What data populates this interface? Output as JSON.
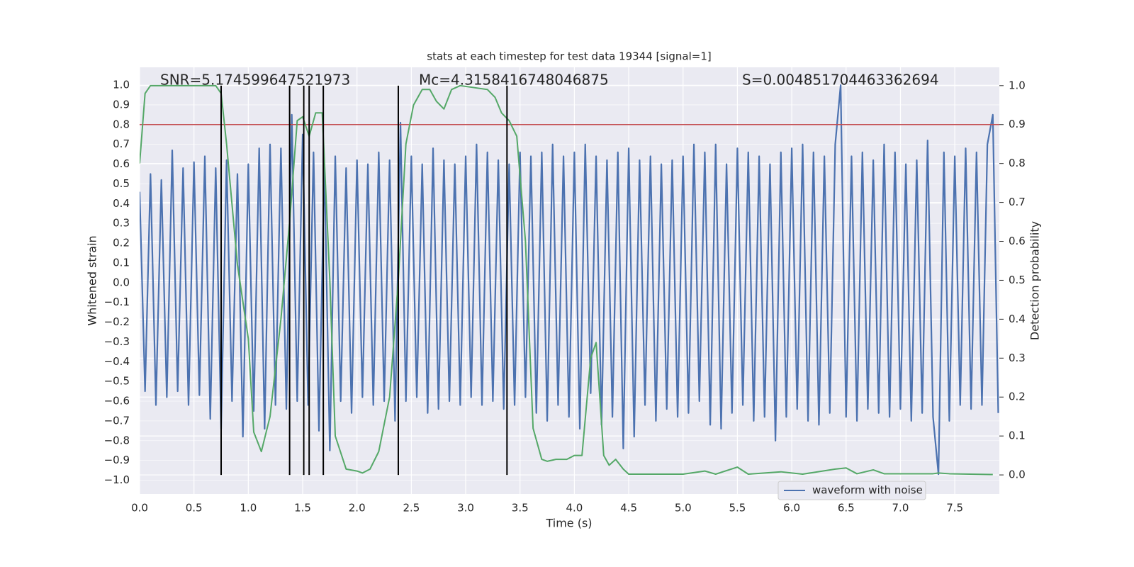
{
  "chart_data": {
    "type": "line",
    "title": "stats at each timestep for test data 19344 [signal=1]",
    "xlabel": "Time (s)",
    "ylabel": "Whitened strain",
    "y2label": "Detection probability",
    "annotations": [
      "SNR=5.174599647521973",
      "Mc=4.3158416748046875",
      "S=0.004851704463362694"
    ],
    "xlim": [
      0,
      7.91
    ],
    "ylim": [
      -1.07,
      1.09
    ],
    "y2lim": [
      -0.049,
      1.047
    ],
    "xticks": [
      {
        "value": 0,
        "label": "0.0"
      },
      0.5,
      {
        "value": 1,
        "label": "1.0"
      },
      1.5,
      {
        "value": 2,
        "label": "2.0"
      },
      2.5,
      {
        "value": 3,
        "label": "3.0"
      },
      3.5,
      {
        "value": 4,
        "label": "4.0"
      },
      4.5,
      {
        "value": 5,
        "label": "5.0"
      },
      5.5,
      {
        "value": 6,
        "label": "6.0"
      },
      6.5,
      {
        "value": 7,
        "label": "7.0"
      },
      7.5
    ],
    "yticks": [
      {
        "value": -1,
        "label": "−1.0"
      },
      {
        "value": -0.9,
        "label": "−0.9"
      },
      {
        "value": -0.8,
        "label": "−0.8"
      },
      {
        "value": -0.7,
        "label": "−0.7"
      },
      {
        "value": -0.6,
        "label": "−0.6"
      },
      {
        "value": -0.5,
        "label": "−0.5"
      },
      {
        "value": -0.4,
        "label": "−0.4"
      },
      {
        "value": -0.3,
        "label": "−0.3"
      },
      {
        "value": -0.2,
        "label": "−0.2"
      },
      {
        "value": -0.1,
        "label": "−0.1"
      },
      {
        "value": 0,
        "label": "0.0"
      },
      0.1,
      0.2,
      0.3,
      0.4,
      0.5,
      0.6,
      0.7,
      0.8,
      0.9,
      {
        "value": 1,
        "label": "1.0"
      }
    ],
    "y2ticks": [
      {
        "value": 0,
        "label": "0.0"
      },
      0.1,
      0.2,
      0.3,
      0.4,
      0.5,
      0.6,
      0.7,
      0.8,
      0.9,
      {
        "value": 1,
        "label": "1.0"
      }
    ],
    "grid": true,
    "background": "#eaeaf2",
    "legend": "lower right",
    "series": [
      {
        "name": "waveform with noise",
        "color": "#4c72b0",
        "x": [
          0,
          0.05,
          0.1,
          0.15,
          0.2,
          0.25,
          0.3,
          0.35,
          0.4,
          0.45,
          0.5,
          0.55,
          0.6,
          0.65,
          0.7,
          0.75,
          0.8,
          0.85,
          0.9,
          0.95,
          1,
          1.05,
          1.1,
          1.15,
          1.2,
          1.25,
          1.3,
          1.35,
          1.4,
          1.45,
          1.5,
          1.55,
          1.6,
          1.65,
          1.7,
          1.75,
          1.8,
          1.85,
          1.9,
          1.95,
          2,
          2.05,
          2.1,
          2.15,
          2.2,
          2.25,
          2.3,
          2.35,
          2.4,
          2.45,
          2.5,
          2.55,
          2.6,
          2.65,
          2.7,
          2.75,
          2.8,
          2.85,
          2.9,
          2.95,
          3,
          3.05,
          3.1,
          3.15,
          3.2,
          3.25,
          3.3,
          3.35,
          3.4,
          3.45,
          3.5,
          3.55,
          3.6,
          3.65,
          3.7,
          3.75,
          3.8,
          3.85,
          3.9,
          3.95,
          4,
          4.05,
          4.1,
          4.15,
          4.2,
          4.25,
          4.3,
          4.35,
          4.4,
          4.45,
          4.5,
          4.55,
          4.6,
          4.65,
          4.7,
          4.75,
          4.8,
          4.85,
          4.9,
          4.95,
          5,
          5.05,
          5.1,
          5.15,
          5.2,
          5.25,
          5.3,
          5.35,
          5.4,
          5.45,
          5.5,
          5.55,
          5.6,
          5.65,
          5.7,
          5.75,
          5.8,
          5.85,
          5.9,
          5.95,
          6,
          6.05,
          6.1,
          6.15,
          6.2,
          6.25,
          6.3,
          6.35,
          6.4,
          6.45,
          6.5,
          6.55,
          6.6,
          6.65,
          6.7,
          6.75,
          6.8,
          6.85,
          6.9,
          6.95,
          7,
          7.05,
          7.1,
          7.15,
          7.2,
          7.25,
          7.3,
          7.35,
          7.4,
          7.45,
          7.5,
          7.55,
          7.6,
          7.65,
          7.7,
          7.75,
          7.8,
          7.85,
          7.9
        ],
        "values": [
          0.46,
          -0.55,
          0.55,
          -0.62,
          0.52,
          -0.58,
          0.67,
          -0.55,
          0.58,
          -0.62,
          0.61,
          -0.57,
          0.64,
          -0.69,
          0.58,
          -0.74,
          0.62,
          -0.6,
          0.55,
          -0.78,
          0.6,
          -0.65,
          0.68,
          -0.74,
          0.7,
          -0.62,
          0.68,
          -0.64,
          0.85,
          -0.6,
          0.75,
          -0.62,
          0.66,
          -0.75,
          0.6,
          -0.85,
          0.64,
          -0.6,
          0.58,
          -0.66,
          0.62,
          -0.58,
          0.6,
          -0.62,
          0.66,
          -0.6,
          0.62,
          -0.7,
          0.81,
          -0.6,
          0.64,
          -0.58,
          0.6,
          -0.66,
          0.68,
          -0.64,
          0.62,
          -0.6,
          0.6,
          -0.62,
          0.64,
          -0.58,
          0.7,
          -0.62,
          0.66,
          -0.6,
          0.62,
          -0.64,
          0.6,
          -0.62,
          0.66,
          -0.58,
          0.64,
          -0.66,
          0.66,
          -0.7,
          0.7,
          -0.62,
          0.64,
          -0.68,
          0.66,
          -0.74,
          0.7,
          -0.56,
          0.64,
          -0.72,
          0.62,
          -0.68,
          0.66,
          -0.84,
          0.68,
          -0.78,
          0.62,
          -0.62,
          0.64,
          -0.7,
          0.6,
          -0.64,
          0.62,
          -0.68,
          0.64,
          -0.66,
          0.7,
          -0.6,
          0.66,
          -0.72,
          0.7,
          -0.74,
          0.6,
          -0.66,
          0.68,
          -0.62,
          0.66,
          -0.7,
          0.64,
          -0.68,
          0.6,
          -0.8,
          0.66,
          -0.68,
          0.68,
          -0.64,
          0.7,
          -0.7,
          0.66,
          -0.72,
          0.64,
          -0.66,
          0.7,
          1.0,
          -0.68,
          0.64,
          -0.7,
          0.66,
          -0.64,
          0.62,
          -0.66,
          0.7,
          -0.68,
          0.66,
          -0.64,
          0.6,
          -0.7,
          0.62,
          -0.66,
          0.72,
          -0.68,
          -0.97,
          0.66,
          -0.7,
          0.64,
          -0.62,
          0.68,
          -0.64,
          0.66,
          -0.62,
          0.7,
          0.85,
          -0.66
        ]
      },
      {
        "color": "#55a868",
        "axis": "y2",
        "x": [
          0,
          0.05,
          0.1,
          0.7,
          0.75,
          0.8,
          0.9,
          1,
          1.05,
          1.12,
          1.2,
          1.3,
          1.38,
          1.45,
          1.5,
          1.56,
          1.62,
          1.68,
          1.75,
          1.8,
          1.9,
          2,
          2.05,
          2.12,
          2.2,
          2.3,
          2.38,
          2.45,
          2.52,
          2.6,
          2.67,
          2.73,
          2.8,
          2.87,
          2.95,
          3.2,
          3.27,
          3.33,
          3.4,
          3.47,
          3.55,
          3.62,
          3.7,
          3.75,
          3.83,
          3.93,
          4,
          4.07,
          4.15,
          4.2,
          4.27,
          4.32,
          4.38,
          4.45,
          4.5,
          5,
          5.2,
          5.3,
          5.5,
          5.6,
          5.9,
          6.1,
          6.4,
          6.5,
          6.6,
          6.75,
          6.85,
          7.3,
          7.35,
          7.45,
          7.85
        ],
        "values": [
          0.8,
          0.98,
          1,
          1,
          0.98,
          0.85,
          0.54,
          0.35,
          0.11,
          0.06,
          0.15,
          0.4,
          0.65,
          0.91,
          0.92,
          0.87,
          0.93,
          0.93,
          0.5,
          0.1,
          0.015,
          0.01,
          0.005,
          0.015,
          0.06,
          0.2,
          0.5,
          0.85,
          0.95,
          0.99,
          0.99,
          0.96,
          0.94,
          0.99,
          1,
          0.99,
          0.97,
          0.93,
          0.91,
          0.87,
          0.6,
          0.12,
          0.04,
          0.035,
          0.04,
          0.04,
          0.05,
          0.05,
          0.3,
          0.34,
          0.05,
          0.025,
          0.04,
          0.015,
          0.002,
          0.002,
          0.01,
          0.002,
          0.02,
          0.002,
          0.008,
          0.002,
          0.015,
          0.018,
          0.003,
          0.013,
          0.003,
          0.003,
          0.005,
          0.003,
          0.001
        ]
      }
    ],
    "threshold": {
      "value": 0.9,
      "axis": "y2",
      "color": "#c44e52"
    },
    "vlines": {
      "x": [
        0.75,
        1.38,
        1.51,
        1.56,
        1.69,
        2.38,
        3.38
      ],
      "ymin": 0,
      "ymax": 1,
      "axis": "y2",
      "color": "#000000"
    }
  }
}
